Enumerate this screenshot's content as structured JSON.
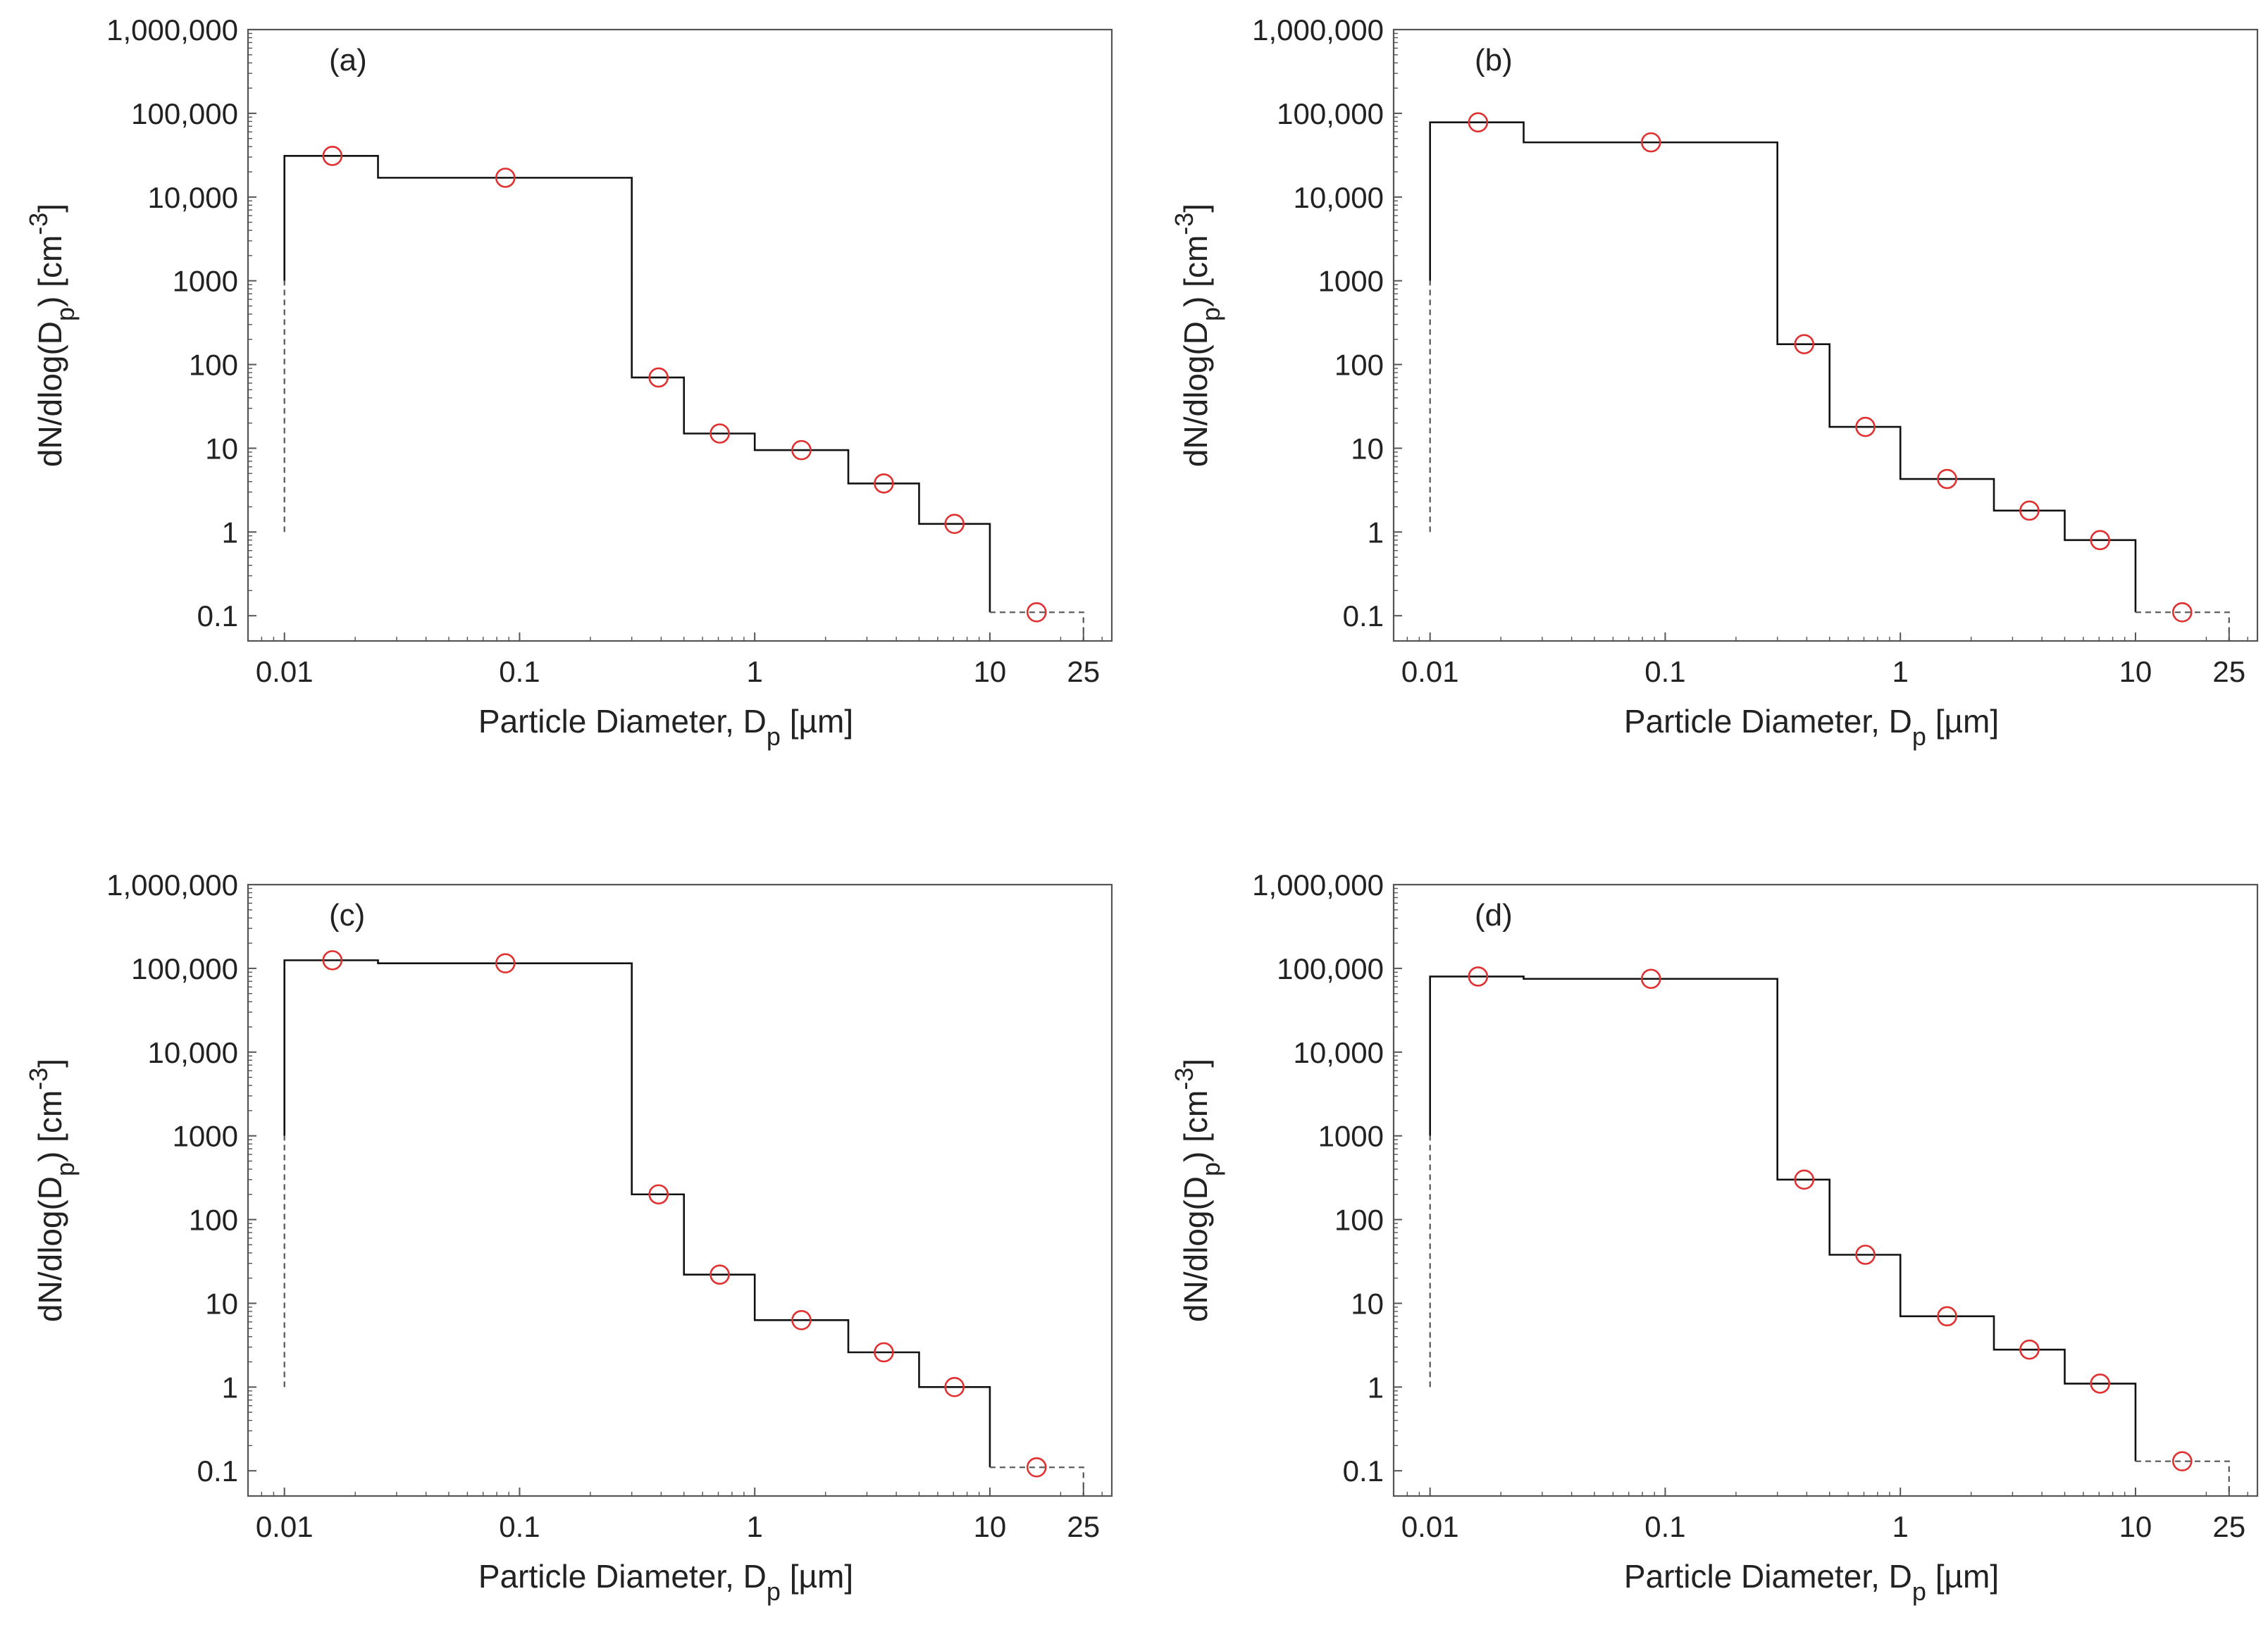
{
  "figure": {
    "x_ticks": [
      "0.01",
      "0.1",
      "1",
      "10",
      "25"
    ],
    "x_tick_values": [
      0.01,
      0.1,
      1,
      10,
      25
    ],
    "y_ticks": [
      "0.1",
      "1",
      "10",
      "100",
      "1000",
      "10,000",
      "100,000",
      "1,000,000"
    ],
    "y_tick_values": [
      0.1,
      1,
      10,
      100,
      1000,
      10000,
      100000,
      1000000
    ],
    "colors": {
      "step": "#111111",
      "marker": "#e03030",
      "axis": "#555555",
      "dashed": "#555555"
    }
  },
  "chart_data": [
    {
      "type": "line",
      "panel_label": "(a)",
      "xlabel": "Particle Diameter, D",
      "xlabel_sub": "p",
      "xlabel_unit": " [µm]",
      "ylabel_main": "dN/dlog(D",
      "ylabel_sub": "p",
      "ylabel_rest": ") [cm",
      "ylabel_sup": "-3",
      "ylabel_end": "]",
      "xscale": "log",
      "yscale": "log",
      "xlim": [
        0.007,
        33
      ],
      "ylim": [
        0.05,
        1000000
      ],
      "bin_edges": [
        0.01,
        0.025,
        0.3,
        0.5,
        1,
        2.5,
        5,
        10,
        25
      ],
      "bin_values": [
        31000,
        17000,
        70,
        15,
        9.5,
        3.8,
        1.25,
        0.11
      ],
      "markers": {
        "x": [
          0.016,
          0.087,
          0.39,
          0.71,
          1.58,
          3.54,
          7.07,
          15.8
        ],
        "y": [
          31000,
          17000,
          70,
          15,
          9.5,
          3.8,
          1.25,
          0.11
        ]
      },
      "lower_extension": {
        "x": 0.01,
        "y_from": 1,
        "y_to": 1000
      }
    },
    {
      "type": "line",
      "panel_label": "(b)",
      "xlabel": "Particle Diameter, D",
      "xlabel_sub": "p",
      "xlabel_unit": " [µm]",
      "ylabel_main": "dN/dlog(D",
      "ylabel_sub": "p",
      "ylabel_rest": ") [cm",
      "ylabel_sup": "-3",
      "ylabel_end": "]",
      "xscale": "log",
      "yscale": "log",
      "xlim": [
        0.007,
        33
      ],
      "ylim": [
        0.05,
        1000000
      ],
      "bin_edges": [
        0.01,
        0.025,
        0.3,
        0.5,
        1,
        2.5,
        5,
        10,
        25
      ],
      "bin_values": [
        78000,
        45000,
        175,
        18,
        4.3,
        1.8,
        0.8,
        0.11
      ],
      "markers": {
        "x": [
          0.016,
          0.087,
          0.39,
          0.71,
          1.58,
          3.54,
          7.07,
          15.8
        ],
        "y": [
          78000,
          45000,
          175,
          18,
          4.3,
          1.8,
          0.8,
          0.11
        ]
      },
      "lower_extension": {
        "x": 0.01,
        "y_from": 1,
        "y_to": 1000
      }
    },
    {
      "type": "line",
      "panel_label": "(c)",
      "xlabel": "Particle Diameter, D",
      "xlabel_sub": "p",
      "xlabel_unit": " [µm]",
      "ylabel_main": "dN/dlog(D",
      "ylabel_sub": "p",
      "ylabel_rest": ") [cm",
      "ylabel_sup": "-3",
      "ylabel_end": "]",
      "xscale": "log",
      "yscale": "log",
      "xlim": [
        0.007,
        33
      ],
      "ylim": [
        0.05,
        1000000
      ],
      "bin_edges": [
        0.01,
        0.025,
        0.3,
        0.5,
        1,
        2.5,
        5,
        10,
        25
      ],
      "bin_values": [
        125000,
        115000,
        200,
        22,
        6.3,
        2.6,
        1.0,
        0.11
      ],
      "markers": {
        "x": [
          0.016,
          0.087,
          0.39,
          0.71,
          1.58,
          3.54,
          7.07,
          15.8
        ],
        "y": [
          125000,
          115000,
          200,
          22,
          6.3,
          2.6,
          1.0,
          0.11
        ]
      },
      "lower_extension": {
        "x": 0.01,
        "y_from": 1,
        "y_to": 1000
      }
    },
    {
      "type": "line",
      "panel_label": "(d)",
      "xlabel": "Particle Diameter, D",
      "xlabel_sub": "p",
      "xlabel_unit": " [µm]",
      "ylabel_main": "dN/dlog(D",
      "ylabel_sub": "p",
      "ylabel_rest": ") [cm",
      "ylabel_sup": "-3",
      "ylabel_end": "]",
      "xscale": "log",
      "yscale": "log",
      "xlim": [
        0.007,
        33
      ],
      "ylim": [
        0.05,
        1000000
      ],
      "bin_edges": [
        0.01,
        0.025,
        0.3,
        0.5,
        1,
        2.5,
        5,
        10,
        25
      ],
      "bin_values": [
        80000,
        75000,
        300,
        38,
        7.0,
        2.8,
        1.1,
        0.13
      ],
      "markers": {
        "x": [
          0.016,
          0.087,
          0.39,
          0.71,
          1.58,
          3.54,
          7.07,
          15.8
        ],
        "y": [
          80000,
          75000,
          300,
          38,
          7.0,
          2.8,
          1.1,
          0.13
        ]
      },
      "lower_extension": {
        "x": 0.01,
        "y_from": 1,
        "y_to": 1000
      }
    }
  ]
}
